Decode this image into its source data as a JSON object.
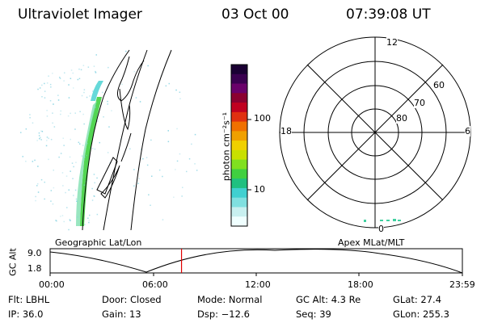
{
  "header": {
    "instrument": "Ultraviolet Imager",
    "date": "03 Oct 00",
    "time": "07:39:08 UT"
  },
  "colorbar": {
    "unit_label": "photon cm⁻²s⁻¹",
    "ticks": [
      "100",
      "10"
    ],
    "colors": [
      "#1a0033",
      "#3a0050",
      "#6a006a",
      "#8b0030",
      "#c00020",
      "#e03010",
      "#f07000",
      "#f0a000",
      "#f0d000",
      "#c8e000",
      "#80e020",
      "#40d040",
      "#20c080",
      "#40d0d0",
      "#80e0e0",
      "#c8f0f0",
      "#f0ffff"
    ]
  },
  "polar_plot": {
    "mlt_labels": {
      "top": "12",
      "bottom": "0",
      "left": "18",
      "right": "6"
    },
    "lat_labels": [
      "60",
      "70",
      "80"
    ]
  },
  "timeline": {
    "left_title": "Geographic Lat/Lon",
    "right_title": "Apex MLat/MLT",
    "axis_label": "GC Alt",
    "y_ticks": [
      "9.0",
      "1.8"
    ],
    "x_ticks": [
      "00:00",
      "06:00",
      "12:00",
      "18:00",
      "23:59"
    ],
    "marker_time_hours": 7.65,
    "marker_color": "#e00000"
  },
  "info": {
    "flt": "Flt: LBHL",
    "ip": "IP: 36.0",
    "door": "Door: Closed",
    "gain": "Gain: 13",
    "mode": "Mode: Normal",
    "dsp": "Dsp:  −12.6",
    "gc_alt": "GC Alt: 4.3 Re",
    "seq": "Seq: 39",
    "glat": "GLat:  27.4",
    "glon": "GLon: 255.3"
  }
}
